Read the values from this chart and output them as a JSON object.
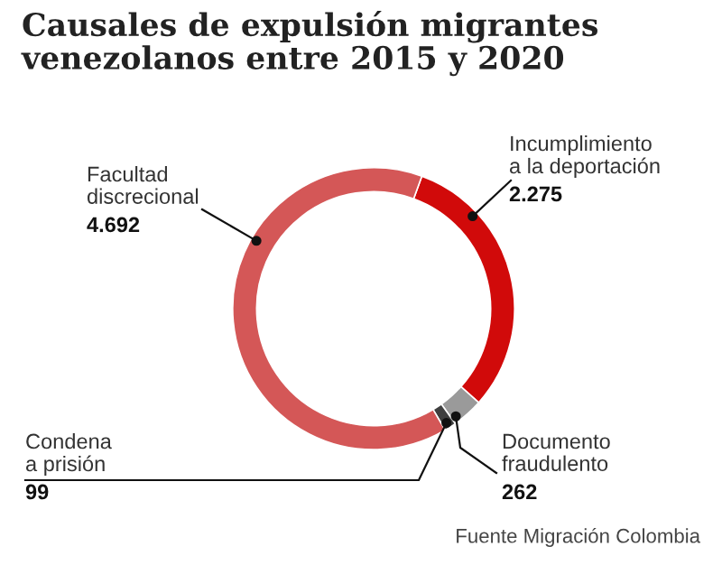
{
  "chart_data": {
    "type": "donut",
    "title": "Causales de expulsión migrantes\nvenezolanos entre 2015 y 2020",
    "categories": [
      "Incumplimiento\na la deportación",
      "Documento\nfraudulento",
      "Condena\na prisión",
      "Facultad\ndiscrecional"
    ],
    "values": [
      2275,
      262,
      99,
      4692
    ],
    "value_labels": [
      "2.275",
      "262",
      "99",
      "4.692"
    ],
    "colors": [
      "#d10a0a",
      "#9a9a9a",
      "#3f3f3f",
      "#d45757"
    ],
    "annotations": [
      "Fuente Migración Colombia"
    ],
    "legend": false
  }
}
